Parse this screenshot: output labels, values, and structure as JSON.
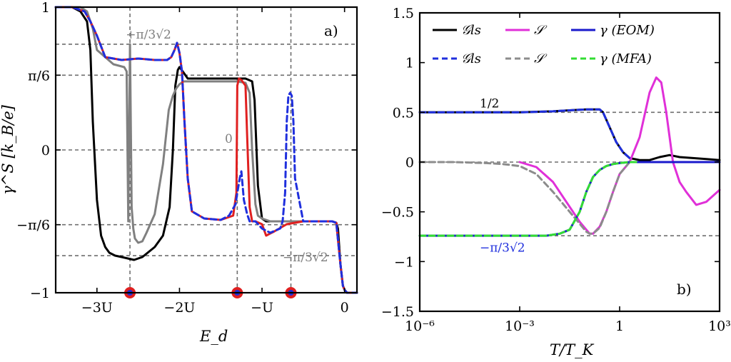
{
  "chart_data": [
    {
      "type": "line",
      "panel_label": "a)",
      "xlabel": "E_d",
      "ylabel": "γ^S [k_B/e]",
      "xlim": [
        -3.5,
        0.15
      ],
      "ylim": [
        -1,
        1
      ],
      "xticks": [
        {
          "value": -3,
          "label": "−3U"
        },
        {
          "value": -2,
          "label": "−2U"
        },
        {
          "value": -1,
          "label": "−U"
        },
        {
          "value": 0,
          "label": "0"
        }
      ],
      "yticks": [
        {
          "value": -1,
          "label": "−1"
        },
        {
          "value": -0.5236,
          "label": "−π/6"
        },
        {
          "value": 0,
          "label": "0"
        },
        {
          "value": 0.5236,
          "label": "π/6"
        },
        {
          "value": 1,
          "label": "1"
        }
      ],
      "hlines": [
        0.7405,
        0.5236,
        0,
        -0.5236,
        -0.7405,
        1
      ],
      "vlines": [
        -2.6,
        -1.3,
        -0.65
      ],
      "annotations": [
        {
          "text": "+π/3√2",
          "x": -2.65,
          "y": 0.78,
          "color": "#808080"
        },
        {
          "text": "0",
          "x": -1.45,
          "y": 0.05,
          "color": "#808080"
        },
        {
          "text": "−π/3√2",
          "x": -0.75,
          "y": -0.78,
          "color": "#808080"
        }
      ],
      "markers": [
        {
          "x": -2.6,
          "y": -1
        },
        {
          "x": -1.3,
          "y": -1
        },
        {
          "x": -0.65,
          "y": -1
        }
      ],
      "series": [
        {
          "name": "black",
          "color": "#000000",
          "dashed": false,
          "x": [
            -3.5,
            -3.3,
            -3.2,
            -3.12,
            -3.08,
            -3.05,
            -3.0,
            -2.95,
            -2.9,
            -2.85,
            -2.78,
            -2.7,
            -2.55,
            -2.45,
            -2.3,
            -2.2,
            -2.12,
            -2.08,
            -2.05,
            -2.02,
            -2.0,
            -1.96,
            -1.9,
            -1.7,
            -1.4,
            -1.2,
            -1.12,
            -1.09,
            -1.05,
            -1.0,
            -0.95,
            -0.9,
            -0.7,
            -0.3,
            -0.15,
            -0.1,
            -0.08,
            -0.05,
            -0.02,
            0.0,
            0.03,
            0.07,
            0.15
          ],
          "y": [
            1.0,
            1.0,
            0.97,
            0.9,
            0.7,
            0.2,
            -0.35,
            -0.6,
            -0.68,
            -0.72,
            -0.74,
            -0.75,
            -0.77,
            -0.75,
            -0.68,
            -0.6,
            -0.4,
            0.0,
            0.45,
            0.56,
            0.58,
            0.55,
            0.5,
            0.5,
            0.5,
            0.5,
            0.48,
            0.35,
            -0.25,
            -0.48,
            -0.5,
            -0.5,
            -0.5,
            -0.5,
            -0.5,
            -0.51,
            -0.55,
            -0.8,
            -0.95,
            -0.98,
            -1.0,
            -1.0,
            -1.0
          ]
        },
        {
          "name": "gray",
          "color": "#808080",
          "dashed": false,
          "x": [
            -3.5,
            -3.2,
            -3.12,
            -3.05,
            -3.0,
            -2.8,
            -2.67,
            -2.64,
            -2.62,
            -2.6,
            -2.58,
            -2.56,
            -2.54,
            -2.5,
            -2.45,
            -2.4,
            -2.3,
            -2.2,
            -2.13,
            -2.08,
            -2.04,
            -2.0,
            -1.95,
            -1.85,
            -1.7,
            -1.5,
            -1.3,
            -1.2,
            -1.15,
            -1.12,
            -1.08,
            -1.05,
            -1.0,
            -0.95,
            -0.9,
            -0.7,
            -0.3,
            -0.15,
            -0.1,
            -0.05,
            -0.02,
            0.0,
            0.03,
            0.07,
            0.15
          ],
          "y": [
            1.0,
            1.0,
            0.97,
            0.85,
            0.7,
            0.6,
            0.58,
            0.55,
            -0.5,
            0.74,
            -0.4,
            -0.55,
            -0.62,
            -0.65,
            -0.64,
            -0.58,
            -0.45,
            -0.1,
            0.28,
            0.38,
            0.43,
            0.46,
            0.48,
            0.48,
            0.48,
            0.48,
            0.48,
            0.47,
            0.4,
            0.0,
            -0.38,
            -0.46,
            -0.48,
            -0.49,
            -0.5,
            -0.5,
            -0.5,
            -0.5,
            -0.51,
            -0.8,
            -0.95,
            -0.98,
            -1.0,
            -1.0,
            -1.0
          ]
        },
        {
          "name": "red",
          "color": "#e02020",
          "dashed": false,
          "x": [
            -3.5,
            -3.3,
            -3.15,
            -3.08,
            -3.0,
            -2.9,
            -2.7,
            -2.5,
            -2.3,
            -2.15,
            -2.1,
            -2.06,
            -2.03,
            -2.0,
            -1.97,
            -1.94,
            -1.9,
            -1.85,
            -1.7,
            -1.5,
            -1.35,
            -1.31,
            -1.3,
            -1.28,
            -1.25,
            -1.2,
            -1.18,
            -1.15,
            -1.12,
            -1.08,
            -1.0,
            -0.95,
            -0.85,
            -0.7,
            -0.5,
            -0.3,
            -0.15,
            -0.1,
            -0.05,
            -0.02,
            0.0,
            0.03,
            0.07,
            0.15
          ],
          "y": [
            1.0,
            1.0,
            0.97,
            0.9,
            0.8,
            0.65,
            0.63,
            0.64,
            0.63,
            0.63,
            0.65,
            0.7,
            0.75,
            0.68,
            0.55,
            0.2,
            -0.2,
            -0.43,
            -0.48,
            -0.49,
            -0.46,
            -0.3,
            0.45,
            0.5,
            0.49,
            0.45,
            0.1,
            -0.4,
            -0.5,
            -0.5,
            -0.52,
            -0.6,
            -0.57,
            -0.52,
            -0.5,
            -0.5,
            -0.5,
            -0.51,
            -0.8,
            -0.95,
            -0.98,
            -1.0,
            -1.0,
            -1.0
          ]
        },
        {
          "name": "blue-dashed",
          "color": "#1f2fdd",
          "dashed": true,
          "x": [
            -3.5,
            -3.3,
            -3.15,
            -3.08,
            -3.0,
            -2.9,
            -2.7,
            -2.5,
            -2.3,
            -2.15,
            -2.1,
            -2.06,
            -2.03,
            -2.0,
            -1.97,
            -1.94,
            -1.9,
            -1.85,
            -1.7,
            -1.5,
            -1.4,
            -1.32,
            -1.3,
            -1.27,
            -1.25,
            -1.22,
            -1.18,
            -1.15,
            -1.12,
            -1.08,
            -1.0,
            -0.9,
            -0.78,
            -0.75,
            -0.72,
            -0.7,
            -0.68,
            -0.66,
            -0.64,
            -0.62,
            -0.6,
            -0.5,
            -0.3,
            -0.15,
            -0.1,
            -0.05,
            -0.02,
            0.0,
            0.03,
            0.07,
            0.15
          ],
          "y": [
            1.0,
            1.0,
            0.97,
            0.9,
            0.8,
            0.65,
            0.63,
            0.64,
            0.63,
            0.63,
            0.65,
            0.7,
            0.75,
            0.68,
            0.55,
            0.2,
            -0.2,
            -0.43,
            -0.48,
            -0.49,
            -0.46,
            -0.38,
            -0.3,
            -0.2,
            -0.15,
            -0.35,
            -0.45,
            -0.5,
            -0.5,
            -0.5,
            -0.55,
            -0.58,
            -0.55,
            -0.5,
            -0.3,
            0.2,
            0.38,
            0.4,
            0.38,
            0.2,
            -0.2,
            -0.5,
            -0.5,
            -0.5,
            -0.51,
            -0.8,
            -0.95,
            -0.98,
            -1.0,
            -1.0,
            -1.0
          ]
        }
      ]
    },
    {
      "type": "line",
      "panel_label": "b)",
      "xscale": "log",
      "xlabel": "T/T_K",
      "ylabel": "",
      "xlim": [
        -6,
        3
      ],
      "ylim": [
        -1.5,
        1.5
      ],
      "xticks": [
        {
          "value": -6,
          "label": "10⁻⁶"
        },
        {
          "value": -3,
          "label": "10⁻³"
        },
        {
          "value": 0,
          "label": "1"
        },
        {
          "value": 3,
          "label": "10³"
        }
      ],
      "yticks": [
        {
          "value": -1.5,
          "label": "−1.5"
        },
        {
          "value": -1,
          "label": "−1"
        },
        {
          "value": -0.5,
          "label": "−0.5"
        },
        {
          "value": 0,
          "label": "0"
        },
        {
          "value": 0.5,
          "label": "0.5"
        },
        {
          "value": 1,
          "label": "1"
        },
        {
          "value": 1.5,
          "label": "1.5"
        }
      ],
      "hlines": [
        0.5,
        0,
        -0.7405
      ],
      "annotations": [
        {
          "text": "1/2",
          "x": -4.2,
          "y": 0.55,
          "color": "#000000"
        },
        {
          "text": "−π/3√2",
          "x": -4.2,
          "y": -0.9,
          "color": "#1f2fdd"
        }
      ],
      "legend": {
        "placement": "top",
        "entries": [
          {
            "label": "𝒢ls",
            "color": "#000000",
            "dashed": false
          },
          {
            "label": "𝒮",
            "color": "#e030d8",
            "dashed": false
          },
          {
            "label": "γ (EOM)",
            "color": "#1a1acc",
            "dashed": false
          },
          {
            "label": "𝒢ls",
            "color": "#1f2fdd",
            "dashed": true
          },
          {
            "label": "𝒮",
            "color": "#8c8c8c",
            "dashed": true
          },
          {
            "label": "γ (MFA)",
            "color": "#33dd33",
            "dashed": true
          }
        ]
      },
      "series": [
        {
          "name": "Gls",
          "color": "#000000",
          "dashed": false,
          "x": [
            -6,
            -3,
            -2,
            -1.5,
            -1,
            -0.6,
            -0.5,
            -0.3,
            -0.1,
            0.1,
            0.3,
            0.6,
            0.9,
            1.2,
            1.5,
            1.8,
            2.2,
            2.6,
            3.0
          ],
          "y": [
            0.5,
            0.5,
            0.51,
            0.52,
            0.53,
            0.53,
            0.5,
            0.35,
            0.2,
            0.1,
            0.04,
            0.02,
            0.02,
            0.05,
            0.07,
            0.05,
            0.04,
            0.03,
            0.02
          ]
        },
        {
          "name": "S",
          "color": "#e030d8",
          "dashed": false,
          "x": [
            -3.0,
            -2.5,
            -2.0,
            -1.5,
            -1.2,
            -1.0,
            -0.9,
            -0.8,
            -0.6,
            -0.4,
            -0.2,
            0.0,
            0.3,
            0.6,
            0.9,
            1.1,
            1.25,
            1.4,
            1.6,
            1.8,
            2.0,
            2.3,
            2.6,
            3.0
          ],
          "y": [
            0.0,
            -0.05,
            -0.2,
            -0.45,
            -0.6,
            -0.68,
            -0.72,
            -0.72,
            -0.65,
            -0.5,
            -0.3,
            -0.12,
            0.0,
            0.25,
            0.7,
            0.85,
            0.8,
            0.5,
            0.0,
            -0.2,
            -0.3,
            -0.43,
            -0.4,
            -0.28
          ]
        },
        {
          "name": "S-gray",
          "color": "#8c8c8c",
          "dashed": true,
          "x": [
            -6,
            -5,
            -4,
            -3.5,
            -3,
            -2.5,
            -2,
            -1.5,
            -1.2,
            -1.0,
            -0.9,
            -0.8,
            -0.6,
            -0.4,
            -0.2,
            0.0,
            0.3
          ],
          "y": [
            0.0,
            0.0,
            -0.01,
            -0.02,
            -0.04,
            -0.12,
            -0.3,
            -0.5,
            -0.62,
            -0.7,
            -0.72,
            -0.72,
            -0.66,
            -0.5,
            -0.3,
            -0.12,
            0.0
          ]
        },
        {
          "name": "Gls-dashed",
          "color": "#1f2fdd",
          "dashed": true,
          "x": [
            -6,
            -3,
            -2,
            -1.5,
            -1,
            -0.6,
            -0.5,
            -0.3,
            -0.1,
            0.1,
            0.3
          ],
          "y": [
            0.5,
            0.5,
            0.51,
            0.52,
            0.53,
            0.53,
            0.5,
            0.35,
            0.2,
            0.1,
            0.04
          ]
        },
        {
          "name": "gamma EOM",
          "color": "#1a1acc",
          "dashed": false,
          "x": [
            -6,
            -3,
            -2.2,
            -1.8,
            -1.5,
            -1.2,
            -1.0,
            -0.8,
            -0.6,
            -0.4,
            -0.2,
            0.0,
            0.3,
            3.0
          ],
          "y": [
            -0.74,
            -0.74,
            -0.74,
            -0.72,
            -0.68,
            -0.5,
            -0.3,
            -0.15,
            -0.08,
            -0.04,
            -0.02,
            -0.01,
            0.0,
            0.0
          ]
        },
        {
          "name": "gamma MFA",
          "color": "#33dd33",
          "dashed": true,
          "x": [
            -6,
            -3,
            -2.2,
            -1.8,
            -1.5,
            -1.2,
            -1.0,
            -0.8,
            -0.6,
            -0.4,
            -0.2,
            0.0,
            0.3,
            0.6
          ],
          "y": [
            -0.74,
            -0.74,
            -0.74,
            -0.72,
            -0.68,
            -0.5,
            -0.3,
            -0.15,
            -0.08,
            -0.04,
            -0.02,
            -0.01,
            0.0,
            0.0
          ]
        }
      ]
    }
  ]
}
